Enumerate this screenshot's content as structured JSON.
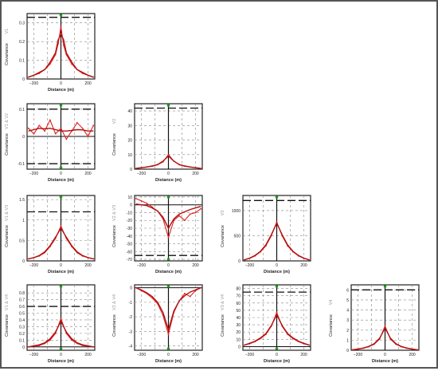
{
  "figure": {
    "xlabel": "Distance  (m)",
    "ylabel": "Covariance",
    "x_ticks": [
      -200,
      0,
      200
    ]
  },
  "chart_data": [
    {
      "type": "line",
      "label": "V1",
      "row": 0,
      "col": 0,
      "xlim": [
        -250,
        250
      ],
      "ylim": [
        0,
        0.35
      ],
      "yticks": [
        0.0,
        0.1,
        0.2,
        0.3
      ],
      "sill": 0.33,
      "horizontal_lines": [
        0.33
      ],
      "x": [
        -240,
        -200,
        -160,
        -120,
        -80,
        -40,
        -20,
        0,
        20,
        40,
        80,
        120,
        160,
        200,
        240
      ],
      "series": [
        {
          "values": [
            0.01,
            0.02,
            0.03,
            0.05,
            0.08,
            0.13,
            0.19,
            0.28,
            0.18,
            0.13,
            0.08,
            0.05,
            0.03,
            0.02,
            0.01
          ]
        },
        {
          "values": [
            0.01,
            0.02,
            0.035,
            0.05,
            0.09,
            0.14,
            0.21,
            0.24,
            0.21,
            0.14,
            0.09,
            0.05,
            0.035,
            0.02,
            0.01
          ]
        }
      ]
    },
    {
      "type": "line",
      "label": "V1 & V2",
      "row": 1,
      "col": 0,
      "xlim": [
        -250,
        250
      ],
      "ylim": [
        -0.12,
        0.12
      ],
      "yticks": [
        -0.1,
        0.0,
        0.1
      ],
      "horizontal_lines": [
        0.1,
        -0.1
      ],
      "x": [
        -240,
        -200,
        -160,
        -120,
        -80,
        -40,
        0,
        40,
        80,
        120,
        160,
        200,
        240
      ],
      "series": [
        {
          "values": [
            0.03,
            0.01,
            0.04,
            0.02,
            0.06,
            0.01,
            0.03,
            -0.01,
            0.02,
            0.05,
            0.03,
            0.0,
            0.04
          ]
        },
        {
          "values": [
            0.02,
            0.025,
            0.03,
            0.028,
            0.03,
            0.025,
            0.02,
            0.02,
            0.022,
            0.025,
            0.024,
            0.02,
            0.02
          ]
        }
      ]
    },
    {
      "type": "line",
      "label": "V2",
      "row": 1,
      "col": 1,
      "xlim": [
        -250,
        250
      ],
      "ylim": [
        0,
        45
      ],
      "yticks": [
        0,
        10,
        20,
        30,
        40
      ],
      "horizontal_lines": [
        42
      ],
      "x": [
        -240,
        -200,
        -160,
        -120,
        -80,
        -40,
        0,
        40,
        80,
        120,
        160,
        200,
        240
      ],
      "series": [
        {
          "values": [
            0.5,
            1,
            1.5,
            2,
            3,
            5,
            10,
            5.5,
            3,
            2,
            1.5,
            1,
            0.5
          ]
        },
        {
          "values": [
            0.5,
            1,
            1.5,
            2.2,
            3.2,
            5.5,
            9,
            5.5,
            3.2,
            2.2,
            1.5,
            1,
            0.5
          ]
        }
      ]
    },
    {
      "type": "line",
      "label": "V1 & V3",
      "row": 2,
      "col": 0,
      "xlim": [
        -250,
        250
      ],
      "ylim": [
        0,
        1.6
      ],
      "yticks": [
        0,
        0.5,
        1.0,
        1.5
      ],
      "horizontal_lines": [
        1.2
      ],
      "x": [
        -240,
        -200,
        -160,
        -120,
        -80,
        -40,
        0,
        40,
        80,
        120,
        160,
        200,
        240
      ],
      "series": [
        {
          "values": [
            0.05,
            0.08,
            0.12,
            0.2,
            0.35,
            0.55,
            0.85,
            0.55,
            0.35,
            0.2,
            0.12,
            0.08,
            0.05
          ]
        },
        {
          "values": [
            0.05,
            0.08,
            0.13,
            0.22,
            0.37,
            0.58,
            0.8,
            0.58,
            0.37,
            0.22,
            0.13,
            0.08,
            0.05
          ]
        }
      ]
    },
    {
      "type": "line",
      "label": "V2 & V3",
      "row": 2,
      "col": 1,
      "xlim": [
        -250,
        250
      ],
      "ylim": [
        -72,
        12
      ],
      "yticks": [
        -70,
        -60,
        -50,
        -40,
        -30,
        -20,
        -10,
        0,
        10
      ],
      "horizontal_lines": [
        -65
      ],
      "x": [
        -240,
        -200,
        -160,
        -120,
        -80,
        -40,
        0,
        40,
        80,
        120,
        160,
        200,
        240
      ],
      "series": [
        {
          "values": [
            8,
            5,
            2,
            -3,
            -8,
            -18,
            -42,
            -20,
            -14,
            -20,
            -12,
            -10,
            -5
          ]
        },
        {
          "values": [
            1,
            0,
            -1,
            -4,
            -8,
            -16,
            -30,
            -18,
            -12,
            -9,
            -6,
            -4,
            -2
          ]
        }
      ]
    },
    {
      "type": "line",
      "label": "V3",
      "row": 2,
      "col": 2,
      "xlim": [
        -250,
        250
      ],
      "ylim": [
        0,
        1300
      ],
      "yticks": [
        0,
        500,
        1000
      ],
      "horizontal_lines": [
        1200
      ],
      "x": [
        -240,
        -200,
        -160,
        -120,
        -80,
        -40,
        0,
        40,
        80,
        120,
        160,
        200,
        240
      ],
      "series": [
        {
          "values": [
            20,
            50,
            100,
            180,
            300,
            500,
            770,
            500,
            300,
            180,
            100,
            50,
            20
          ]
        },
        {
          "values": [
            20,
            55,
            110,
            190,
            320,
            520,
            750,
            520,
            320,
            190,
            110,
            55,
            20
          ]
        }
      ]
    },
    {
      "type": "line",
      "label": "V1 & V4",
      "row": 3,
      "col": 0,
      "xlim": [
        -250,
        250
      ],
      "ylim": [
        -0.05,
        0.92
      ],
      "yticks": [
        0.0,
        0.1,
        0.2,
        0.3,
        0.4,
        0.5,
        0.6,
        0.7,
        0.8
      ],
      "horizontal_lines": [
        0.6
      ],
      "x": [
        -240,
        -200,
        -160,
        -120,
        -80,
        -40,
        0,
        40,
        80,
        120,
        160,
        200,
        240
      ],
      "series": [
        {
          "values": [
            0.0,
            0.01,
            0.02,
            0.05,
            0.1,
            0.2,
            0.42,
            0.2,
            0.1,
            0.05,
            0.02,
            0.01,
            0.0
          ]
        },
        {
          "values": [
            0.0,
            0.015,
            0.03,
            0.06,
            0.12,
            0.22,
            0.38,
            0.22,
            0.12,
            0.06,
            0.03,
            0.015,
            0.0
          ]
        }
      ]
    },
    {
      "type": "line",
      "label": "V2 & V4",
      "row": 3,
      "col": 1,
      "xlim": [
        -250,
        250
      ],
      "ylim": [
        -4.3,
        0.2
      ],
      "yticks": [
        -4,
        -3,
        -2,
        -1,
        0
      ],
      "horizontal_lines": [],
      "x": [
        -240,
        -200,
        -160,
        -120,
        -80,
        -40,
        0,
        40,
        80,
        120,
        160,
        200,
        240
      ],
      "series": [
        {
          "values": [
            0.0,
            -0.2,
            -0.4,
            -0.7,
            -1.1,
            -1.9,
            -3.2,
            -1.7,
            -0.9,
            -0.4,
            -0.6,
            -0.2,
            0.0
          ]
        },
        {
          "values": [
            0.0,
            -0.15,
            -0.35,
            -0.6,
            -1.0,
            -1.7,
            -2.9,
            -1.6,
            -0.9,
            -0.55,
            -0.3,
            -0.15,
            0.0
          ]
        }
      ]
    },
    {
      "type": "line",
      "label": "V3 & V4",
      "row": 3,
      "col": 2,
      "xlim": [
        -250,
        250
      ],
      "ylim": [
        -5,
        85
      ],
      "yticks": [
        0,
        10,
        20,
        30,
        40,
        50,
        60,
        70,
        80
      ],
      "horizontal_lines": [
        75
      ],
      "x": [
        -240,
        -200,
        -160,
        -120,
        -80,
        -40,
        0,
        40,
        80,
        120,
        160,
        200,
        240
      ],
      "series": [
        {
          "values": [
            2,
            4,
            7,
            11,
            17,
            28,
            47,
            28,
            17,
            11,
            7,
            4,
            2
          ]
        },
        {
          "values": [
            2,
            4.5,
            7.5,
            12,
            18,
            29,
            44,
            29,
            18,
            12,
            7.5,
            4.5,
            2
          ]
        }
      ]
    },
    {
      "type": "line",
      "label": "V4",
      "row": 3,
      "col": 3,
      "xlim": [
        -250,
        250
      ],
      "ylim": [
        0,
        6.5
      ],
      "yticks": [
        0,
        1,
        2,
        3,
        4,
        5,
        6
      ],
      "horizontal_lines": [
        6
      ],
      "x": [
        -240,
        -200,
        -160,
        -120,
        -80,
        -40,
        0,
        40,
        80,
        120,
        160,
        200,
        240
      ],
      "series": [
        {
          "values": [
            0.05,
            0.1,
            0.2,
            0.35,
            0.6,
            1.1,
            2.4,
            1.1,
            0.6,
            0.35,
            0.2,
            0.1,
            0.05
          ]
        },
        {
          "values": [
            0.05,
            0.12,
            0.22,
            0.38,
            0.65,
            1.2,
            2.2,
            1.2,
            0.65,
            0.38,
            0.22,
            0.12,
            0.05
          ]
        }
      ]
    }
  ]
}
